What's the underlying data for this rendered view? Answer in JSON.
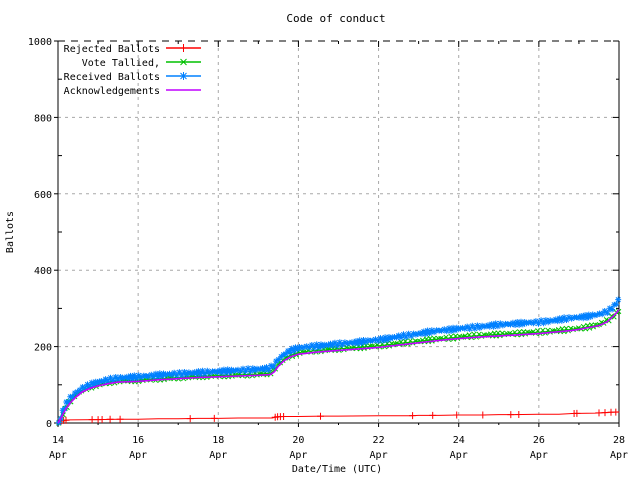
{
  "chart_data": {
    "type": "line",
    "title": "Code of conduct",
    "xlabel": "Date/Time (UTC)",
    "ylabel": "Ballots",
    "ylim": [
      0,
      1000
    ],
    "x_range_days": [
      14,
      28
    ],
    "grid": true,
    "legend_position": "top-left",
    "background_color": "#ffffff",
    "grid_color": "#a8a8a8",
    "border_color": "#000000",
    "yticks": [
      {
        "v": 0,
        "label": "0"
      },
      {
        "v": 200,
        "label": "200"
      },
      {
        "v": 400,
        "label": "400"
      },
      {
        "v": 600,
        "label": "600"
      },
      {
        "v": 800,
        "label": "800"
      },
      {
        "v": 1000,
        "label": "1000"
      }
    ],
    "yticks_minor": [
      100,
      300,
      500,
      700,
      900
    ],
    "xticks": [
      {
        "day": 14,
        "label": "14",
        "sub": "Apr"
      },
      {
        "day": 16,
        "label": "16",
        "sub": "Apr"
      },
      {
        "day": 18,
        "label": "18",
        "sub": "Apr"
      },
      {
        "day": 20,
        "label": "20",
        "sub": "Apr"
      },
      {
        "day": 22,
        "label": "22",
        "sub": "Apr"
      },
      {
        "day": 24,
        "label": "24",
        "sub": "Apr"
      },
      {
        "day": 26,
        "label": "26",
        "sub": "Apr"
      },
      {
        "day": 28,
        "label": "28",
        "sub": "Apr"
      }
    ],
    "xticks_minor_days": [
      15,
      17,
      19,
      21,
      23,
      25,
      27
    ],
    "series": [
      {
        "name": "Rejected Ballots",
        "color": "#ff0000",
        "marker": "plus",
        "dense_markers": false,
        "points": [
          [
            14.0,
            0
          ],
          [
            14.03,
            2
          ],
          [
            14.08,
            5
          ],
          [
            14.15,
            7
          ],
          [
            14.3,
            8
          ],
          [
            15.0,
            9
          ],
          [
            15.5,
            10
          ],
          [
            16.0,
            10
          ],
          [
            16.5,
            11
          ],
          [
            17.0,
            11
          ],
          [
            17.5,
            12
          ],
          [
            18.0,
            12
          ],
          [
            18.5,
            13
          ],
          [
            19.0,
            13
          ],
          [
            19.35,
            13
          ],
          [
            19.45,
            16
          ],
          [
            19.6,
            17
          ],
          [
            20.0,
            17
          ],
          [
            20.6,
            18
          ],
          [
            21.0,
            18
          ],
          [
            22.0,
            19
          ],
          [
            22.8,
            19
          ],
          [
            23.0,
            20
          ],
          [
            23.5,
            20
          ],
          [
            24.0,
            21
          ],
          [
            24.6,
            21
          ],
          [
            25.0,
            22
          ],
          [
            25.4,
            22
          ],
          [
            26.0,
            23
          ],
          [
            26.5,
            23
          ],
          [
            26.9,
            25
          ],
          [
            27.0,
            25
          ],
          [
            27.4,
            26
          ],
          [
            27.6,
            27
          ],
          [
            27.8,
            28
          ],
          [
            28.0,
            29
          ]
        ],
        "marker_days": [
          14.08,
          14.14,
          14.2,
          14.85,
          15.0,
          15.1,
          15.3,
          15.55,
          17.3,
          17.9,
          19.42,
          19.48,
          19.55,
          19.63,
          20.55,
          22.85,
          23.35,
          23.95,
          24.6,
          25.3,
          25.5,
          26.88,
          26.95,
          27.5,
          27.65,
          27.8,
          27.92
        ]
      },
      {
        "name": "Vote Tallied,",
        "color": "#00c000",
        "marker": "cross",
        "dense_markers": true,
        "points": [
          [
            14.0,
            0
          ],
          [
            14.05,
            8
          ],
          [
            14.1,
            22
          ],
          [
            14.2,
            42
          ],
          [
            14.3,
            56
          ],
          [
            14.45,
            72
          ],
          [
            14.6,
            85
          ],
          [
            14.8,
            95
          ],
          [
            15.0,
            100
          ],
          [
            15.25,
            106
          ],
          [
            15.5,
            110
          ],
          [
            16.0,
            112
          ],
          [
            16.5,
            116
          ],
          [
            17.0,
            119
          ],
          [
            17.5,
            122
          ],
          [
            18.0,
            124
          ],
          [
            18.5,
            126
          ],
          [
            19.0,
            128
          ],
          [
            19.3,
            130
          ],
          [
            19.4,
            138
          ],
          [
            19.5,
            153
          ],
          [
            19.65,
            168
          ],
          [
            19.8,
            177
          ],
          [
            20.0,
            184
          ],
          [
            20.25,
            188
          ],
          [
            20.5,
            190
          ],
          [
            21.0,
            194
          ],
          [
            21.5,
            198
          ],
          [
            22.0,
            202
          ],
          [
            22.5,
            208
          ],
          [
            23.0,
            214
          ],
          [
            23.5,
            220
          ],
          [
            24.0,
            225
          ],
          [
            24.5,
            229
          ],
          [
            25.0,
            232
          ],
          [
            25.5,
            235
          ],
          [
            26.0,
            238
          ],
          [
            26.5,
            242
          ],
          [
            26.8,
            245
          ],
          [
            27.0,
            248
          ],
          [
            27.2,
            251
          ],
          [
            27.5,
            257
          ],
          [
            27.7,
            267
          ],
          [
            27.85,
            280
          ],
          [
            27.95,
            291
          ],
          [
            28.0,
            298
          ]
        ]
      },
      {
        "name": "Received Ballots",
        "color": "#0080ff",
        "marker": "asterisk",
        "dense_markers": true,
        "points": [
          [
            14.0,
            0
          ],
          [
            14.05,
            12
          ],
          [
            14.1,
            28
          ],
          [
            14.2,
            48
          ],
          [
            14.3,
            62
          ],
          [
            14.45,
            78
          ],
          [
            14.6,
            92
          ],
          [
            14.8,
            101
          ],
          [
            15.0,
            107
          ],
          [
            15.25,
            113
          ],
          [
            15.5,
            118
          ],
          [
            16.0,
            121
          ],
          [
            16.5,
            126
          ],
          [
            17.0,
            129
          ],
          [
            17.5,
            132
          ],
          [
            18.0,
            135
          ],
          [
            18.5,
            138
          ],
          [
            19.0,
            141
          ],
          [
            19.3,
            143
          ],
          [
            19.4,
            152
          ],
          [
            19.5,
            168
          ],
          [
            19.65,
            182
          ],
          [
            19.8,
            190
          ],
          [
            20.0,
            196
          ],
          [
            20.25,
            200
          ],
          [
            20.5,
            202
          ],
          [
            21.0,
            207
          ],
          [
            21.5,
            212
          ],
          [
            22.0,
            218
          ],
          [
            22.5,
            226
          ],
          [
            23.0,
            234
          ],
          [
            23.5,
            242
          ],
          [
            24.0,
            247
          ],
          [
            24.5,
            252
          ],
          [
            25.0,
            257
          ],
          [
            25.5,
            261
          ],
          [
            26.0,
            264
          ],
          [
            26.5,
            270
          ],
          [
            26.8,
            275
          ],
          [
            27.0,
            277
          ],
          [
            27.2,
            279
          ],
          [
            27.5,
            284
          ],
          [
            27.7,
            292
          ],
          [
            27.85,
            305
          ],
          [
            27.95,
            318
          ],
          [
            28.0,
            327
          ]
        ]
      },
      {
        "name": "Acknowledgements",
        "color": "#c000ff",
        "marker": "none",
        "dense_markers": false,
        "points": [
          [
            14.0,
            0
          ],
          [
            14.1,
            18
          ],
          [
            14.2,
            38
          ],
          [
            14.3,
            52
          ],
          [
            14.45,
            68
          ],
          [
            14.6,
            81
          ],
          [
            14.8,
            91
          ],
          [
            15.0,
            97
          ],
          [
            15.25,
            103
          ],
          [
            15.5,
            107
          ],
          [
            16.0,
            109
          ],
          [
            16.5,
            113
          ],
          [
            17.0,
            116
          ],
          [
            17.5,
            119
          ],
          [
            18.0,
            121
          ],
          [
            18.5,
            123
          ],
          [
            19.0,
            125
          ],
          [
            19.3,
            127
          ],
          [
            19.4,
            134
          ],
          [
            19.5,
            149
          ],
          [
            19.65,
            164
          ],
          [
            19.8,
            173
          ],
          [
            20.0,
            180
          ],
          [
            20.5,
            186
          ],
          [
            21.0,
            190
          ],
          [
            21.5,
            194
          ],
          [
            22.0,
            198
          ],
          [
            22.5,
            204
          ],
          [
            23.0,
            210
          ],
          [
            23.5,
            216
          ],
          [
            24.0,
            221
          ],
          [
            24.5,
            225
          ],
          [
            25.0,
            228
          ],
          [
            25.5,
            231
          ],
          [
            26.0,
            234
          ],
          [
            26.5,
            239
          ],
          [
            26.8,
            242
          ],
          [
            27.0,
            245
          ],
          [
            27.2,
            249
          ],
          [
            27.5,
            255
          ],
          [
            27.7,
            265
          ],
          [
            27.85,
            279
          ],
          [
            27.95,
            290
          ],
          [
            28.0,
            297
          ]
        ]
      }
    ]
  }
}
